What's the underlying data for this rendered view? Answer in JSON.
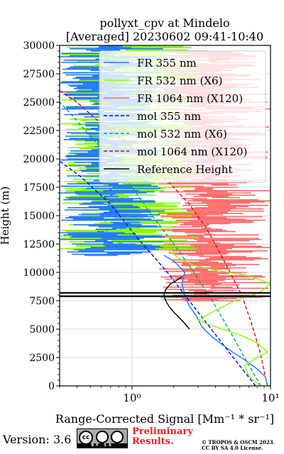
{
  "chart_data": {
    "type": "line",
    "title": "pollyxt_cpv at Mindelo",
    "subtitle": "[Averaged] 20230602 09:41-10:40",
    "xlabel": "Range-Corrected Signal [Mm⁻¹ * sr⁻¹]",
    "ylabel": "Height (m)",
    "xscale": "log",
    "xlim": [
      0.3,
      10
    ],
    "ylim": [
      0,
      30000
    ],
    "x_ticks": [
      1,
      10
    ],
    "x_tick_labels": [
      "10⁰",
      "10¹"
    ],
    "y_ticks": [
      0,
      2500,
      5000,
      7500,
      10000,
      12500,
      15000,
      17500,
      20000,
      22500,
      25000,
      27500,
      30000
    ],
    "y_tick_labels": [
      "0",
      "2500",
      "5000",
      "7500",
      "10000",
      "12500",
      "15000",
      "17500",
      "20000",
      "22500",
      "25000",
      "27500",
      "30000"
    ],
    "grid": true,
    "legend_position": "top-right",
    "legend": [
      {
        "label": "FR 355 nm",
        "color": "#1f77ff",
        "style": "solid"
      },
      {
        "label": "FR 532 nm (X6)",
        "color": "#80ff00",
        "style": "solid"
      },
      {
        "label": "FR 1064 nm (X120)",
        "color": "#ff6a6a",
        "style": "solid"
      },
      {
        "label": "mol 355 nm",
        "color": "#0000ff",
        "style": "dashed"
      },
      {
        "label": "mol 532 nm (X6)",
        "color": "#00b050",
        "style": "dashed"
      },
      {
        "label": "mol 1064 nm (X120)",
        "color": "#e00000",
        "style": "dashed"
      },
      {
        "label": "Reference Height",
        "color": "#000000",
        "style": "solid"
      }
    ],
    "series": [
      {
        "name": "mol 355 nm",
        "color": "#0000ff",
        "dash": true,
        "x": [
          7.8,
          5.0,
          3.0,
          1.8,
          1.1,
          0.7,
          0.42,
          0.3
        ],
        "y": [
          0,
          3000,
          6500,
          10000,
          13000,
          16000,
          18500,
          19800
        ]
      },
      {
        "name": "mol 532 nm (X6)",
        "color": "#00b050",
        "dash": true,
        "x": [
          8.5,
          6.5,
          5.0,
          3.8,
          2.8,
          2.0,
          1.4,
          1.0,
          0.7,
          0.5,
          0.36,
          0.3
        ],
        "y": [
          0,
          2500,
          5000,
          7500,
          10000,
          12500,
          15000,
          17500,
          20000,
          22000,
          24000,
          25000
        ]
      },
      {
        "name": "mol 1064 nm (X120)",
        "color": "#e00000",
        "dash": true,
        "x": [
          9.5,
          8.4,
          7.3,
          6.2,
          5.1,
          4.2,
          3.4,
          2.6,
          2.0,
          1.5,
          1.1,
          0.8,
          0.55,
          0.4,
          0.3
        ],
        "y": [
          0,
          3000,
          5500,
          8000,
          10000,
          12000,
          14000,
          16000,
          17500,
          19000,
          20500,
          22000,
          23500,
          25000,
          26000
        ]
      },
      {
        "name": "FR 355 nm",
        "color": "#1f77ff",
        "dash": false,
        "x": [
          9.5,
          9.2,
          8.0,
          6.5,
          5.0,
          3.8,
          3.2,
          2.9,
          2.6,
          2.4,
          2.3,
          2.4,
          2.2,
          2.0,
          1.7
        ],
        "y": [
          0,
          800,
          1500,
          2300,
          3200,
          4300,
          5200,
          6200,
          7000,
          8000,
          9000,
          10000,
          10500,
          11000,
          11500
        ]
      },
      {
        "name": "FR 532 nm (X6)",
        "color": "#80ff00",
        "dash": false,
        "x": [
          8.5,
          7.0,
          6.5,
          8.0,
          9.5,
          8.0,
          6.0,
          4.5,
          3.6,
          3.0,
          3.8,
          5.5,
          8.5,
          10.0,
          7.0,
          4.0,
          2.8,
          2.2,
          1.8
        ],
        "y": [
          0,
          800,
          1800,
          2500,
          3000,
          3800,
          4500,
          5000,
          5400,
          5800,
          6500,
          7500,
          8300,
          9000,
          9700,
          10200,
          10600,
          11200,
          12000
        ]
      },
      {
        "name": "Reference Height",
        "color": "#000000",
        "dash": false,
        "x": [
          2.6,
          2.4,
          2.2,
          2.0,
          1.85,
          1.75,
          1.7,
          1.75,
          1.9,
          2.1,
          2.3
        ],
        "y": [
          5000,
          5500,
          6000,
          6500,
          7000,
          7500,
          8000,
          8500,
          9000,
          9300,
          9600
        ]
      }
    ],
    "reference_height": [
      7900,
      8200
    ],
    "noise": [
      {
        "name": "FR 1064 nm (X120)",
        "color": "#ff6a6a",
        "y_range": [
          7500,
          29500
        ],
        "x_range": [
          1.5,
          10
        ]
      },
      {
        "name": "FR 532 nm (X6)",
        "color": "#80ff00",
        "y_range": [
          12000,
          30000
        ],
        "x_range": [
          0.3,
          3.0
        ]
      },
      {
        "name": "FR 355 nm",
        "color": "#1f77ff",
        "y_range": [
          11500,
          30000
        ],
        "x_range": [
          0.3,
          1.8
        ]
      }
    ]
  },
  "footer": {
    "version": "Version: 3.6",
    "cc_label": "cc",
    "cc_bar": "BY SA",
    "preliminary_line1": "Preliminary",
    "preliminary_line2": "Results.",
    "copyright_line1": "© TROPOS & OSCM 2023.",
    "copyright_line2": "CC BY SA 4.0 License."
  }
}
